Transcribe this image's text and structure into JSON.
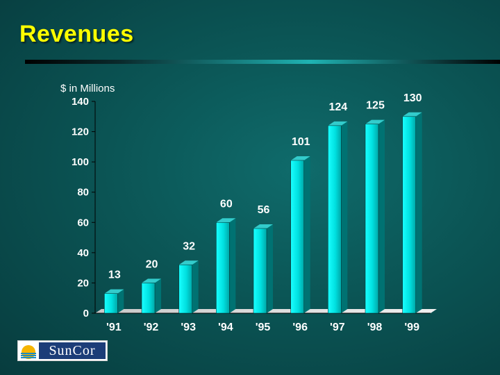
{
  "slide": {
    "title": "Revenues"
  },
  "logo": {
    "text": "SunCor"
  },
  "chart_data": {
    "type": "bar",
    "style": "3d",
    "ylabel": "$ in Millions",
    "xlabel": "",
    "categories": [
      "'91",
      "'92",
      "'93",
      "'94",
      "'95",
      "'96",
      "'97",
      "'98",
      "'99"
    ],
    "values": [
      13,
      20,
      32,
      60,
      56,
      101,
      124,
      125,
      130
    ],
    "data_labels": [
      "13",
      "20",
      "32",
      "60",
      "56",
      "101",
      "124",
      "125",
      "130"
    ],
    "ylim": [
      0,
      140
    ],
    "yticks": [
      0,
      20,
      40,
      60,
      80,
      100,
      120,
      140
    ],
    "grid": false,
    "legend": "none",
    "colors": {
      "bar_front": "#00e5e5",
      "bar_side": "#007272",
      "bar_top": "#33cccc",
      "text": "#ffffff"
    }
  }
}
